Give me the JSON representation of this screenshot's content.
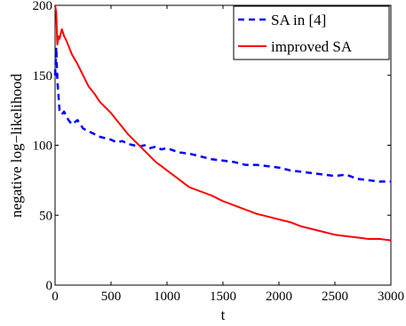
{
  "chart_data": {
    "type": "line",
    "title": "",
    "xlabel": "t",
    "ylabel": "negative log−likelihood",
    "xlim": [
      0,
      3000
    ],
    "ylim": [
      0,
      200
    ],
    "x_ticks": [
      "0",
      "500",
      "1000",
      "1500",
      "2000",
      "2500",
      "3000"
    ],
    "y_ticks": [
      "0",
      "50",
      "100",
      "150",
      "200"
    ],
    "grid": false,
    "legend_position": "top-right",
    "series": [
      {
        "name": "SA in [4]",
        "color": "#0000ff",
        "style": "dashed",
        "x": [
          0,
          10,
          20,
          40,
          60,
          80,
          100,
          120,
          150,
          200,
          250,
          300,
          350,
          400,
          450,
          500,
          550,
          600,
          650,
          700,
          750,
          800,
          850,
          900,
          950,
          1000,
          1100,
          1200,
          1300,
          1400,
          1500,
          1600,
          1700,
          1800,
          1900,
          2000,
          2100,
          2200,
          2300,
          2400,
          2500,
          2600,
          2700,
          2800,
          2900,
          3000
        ],
        "values": [
          150,
          170,
          147,
          125,
          122,
          124,
          121,
          118,
          115,
          118,
          112,
          110,
          108,
          106,
          105,
          104,
          102,
          103,
          101,
          100,
          99,
          100,
          98,
          99,
          97,
          98,
          95,
          94,
          92,
          90,
          89,
          88,
          86,
          86,
          85,
          84,
          82,
          81,
          80,
          79,
          78,
          79,
          76,
          75,
          74,
          74
        ]
      },
      {
        "name": "improved SA",
        "color": "#ff0000",
        "style": "solid",
        "x": [
          0,
          10,
          20,
          30,
          40,
          60,
          80,
          100,
          150,
          200,
          250,
          300,
          350,
          400,
          450,
          500,
          550,
          600,
          650,
          700,
          750,
          800,
          850,
          900,
          950,
          1000,
          1100,
          1200,
          1300,
          1400,
          1500,
          1600,
          1700,
          1800,
          1900,
          2000,
          2100,
          2200,
          2300,
          2400,
          2500,
          2600,
          2700,
          2800,
          2900,
          3000
        ],
        "values": [
          200,
          195,
          172,
          178,
          176,
          183,
          178,
          175,
          165,
          158,
          150,
          142,
          137,
          131,
          127,
          123,
          118,
          113,
          108,
          104,
          100,
          96,
          92,
          88,
          85,
          82,
          76,
          70,
          67,
          64,
          60,
          57,
          54,
          51,
          49,
          47,
          45,
          42,
          40,
          38,
          36,
          35,
          34,
          33,
          33,
          32
        ]
      }
    ]
  }
}
